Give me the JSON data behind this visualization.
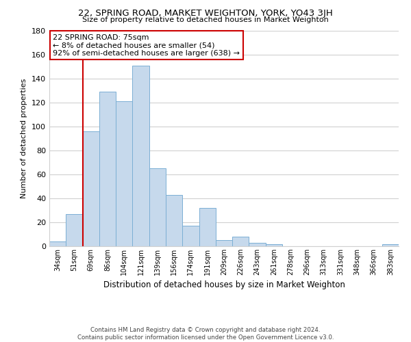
{
  "title": "22, SPRING ROAD, MARKET WEIGHTON, YORK, YO43 3JH",
  "subtitle": "Size of property relative to detached houses in Market Weighton",
  "xlabel": "Distribution of detached houses by size in Market Weighton",
  "ylabel": "Number of detached properties",
  "categories": [
    "34sqm",
    "51sqm",
    "69sqm",
    "86sqm",
    "104sqm",
    "121sqm",
    "139sqm",
    "156sqm",
    "174sqm",
    "191sqm",
    "209sqm",
    "226sqm",
    "243sqm",
    "261sqm",
    "278sqm",
    "296sqm",
    "313sqm",
    "331sqm",
    "348sqm",
    "366sqm",
    "383sqm"
  ],
  "values": [
    4,
    27,
    96,
    129,
    121,
    151,
    65,
    43,
    17,
    32,
    5,
    8,
    3,
    2,
    0,
    0,
    0,
    0,
    0,
    0,
    2
  ],
  "bar_color": "#c6d9ec",
  "bar_edge_color": "#7bafd4",
  "property_line_color": "#cc0000",
  "ylim": [
    0,
    180
  ],
  "yticks": [
    0,
    20,
    40,
    60,
    80,
    100,
    120,
    140,
    160,
    180
  ],
  "annotation_title": "22 SPRING ROAD: 75sqm",
  "annotation_line1": "← 8% of detached houses are smaller (54)",
  "annotation_line2": "92% of semi-detached houses are larger (638) →",
  "annotation_box_color": "#ffffff",
  "annotation_box_edge": "#cc0000",
  "footer1": "Contains HM Land Registry data © Crown copyright and database right 2024.",
  "footer2": "Contains public sector information licensed under the Open Government Licence v3.0.",
  "background_color": "#ffffff",
  "grid_color": "#d0d0d0"
}
